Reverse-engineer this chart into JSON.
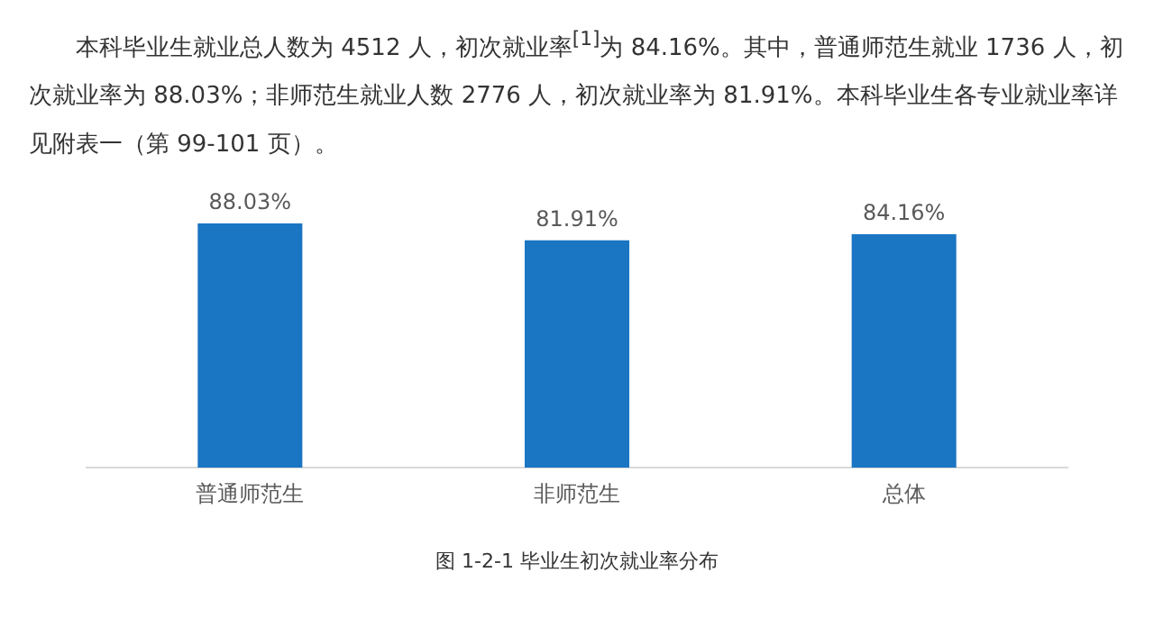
{
  "chart_data": {
    "type": "bar",
    "title": "图 1-2-1 毕业生初次就业率分布",
    "annotations": [
      "本科毕业生就业总人数为 4512 人，初次就业率$^{[1]}$为 84.16%。其中，普通师范生就业 1736 人，初次就业率为 88.03%；非师范生就业人数 2776 人，初次就业率为 81.91%。本科毕业生各专业就业率详见附表一（第 99-101 页）。"
    ],
    "categories": [
      "普通师范生",
      "非师范生",
      "总体"
    ],
    "values": [
      88.03,
      81.91,
      84.16
    ],
    "value_labels": [
      "88.03%",
      "81.91%",
      "84.16%"
    ],
    "color": "#1a75c2",
    "tick_labels": "x"
  }
}
